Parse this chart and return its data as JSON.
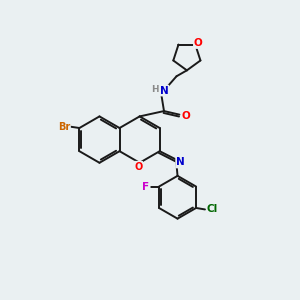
{
  "bg_color": "#eaf0f2",
  "bond_color": "#1a1a1a",
  "atom_colors": {
    "O": "#ff0000",
    "N": "#0000cc",
    "Br": "#cc6600",
    "F": "#cc00cc",
    "Cl": "#006600",
    "H": "#888888"
  },
  "lw": 1.4
}
